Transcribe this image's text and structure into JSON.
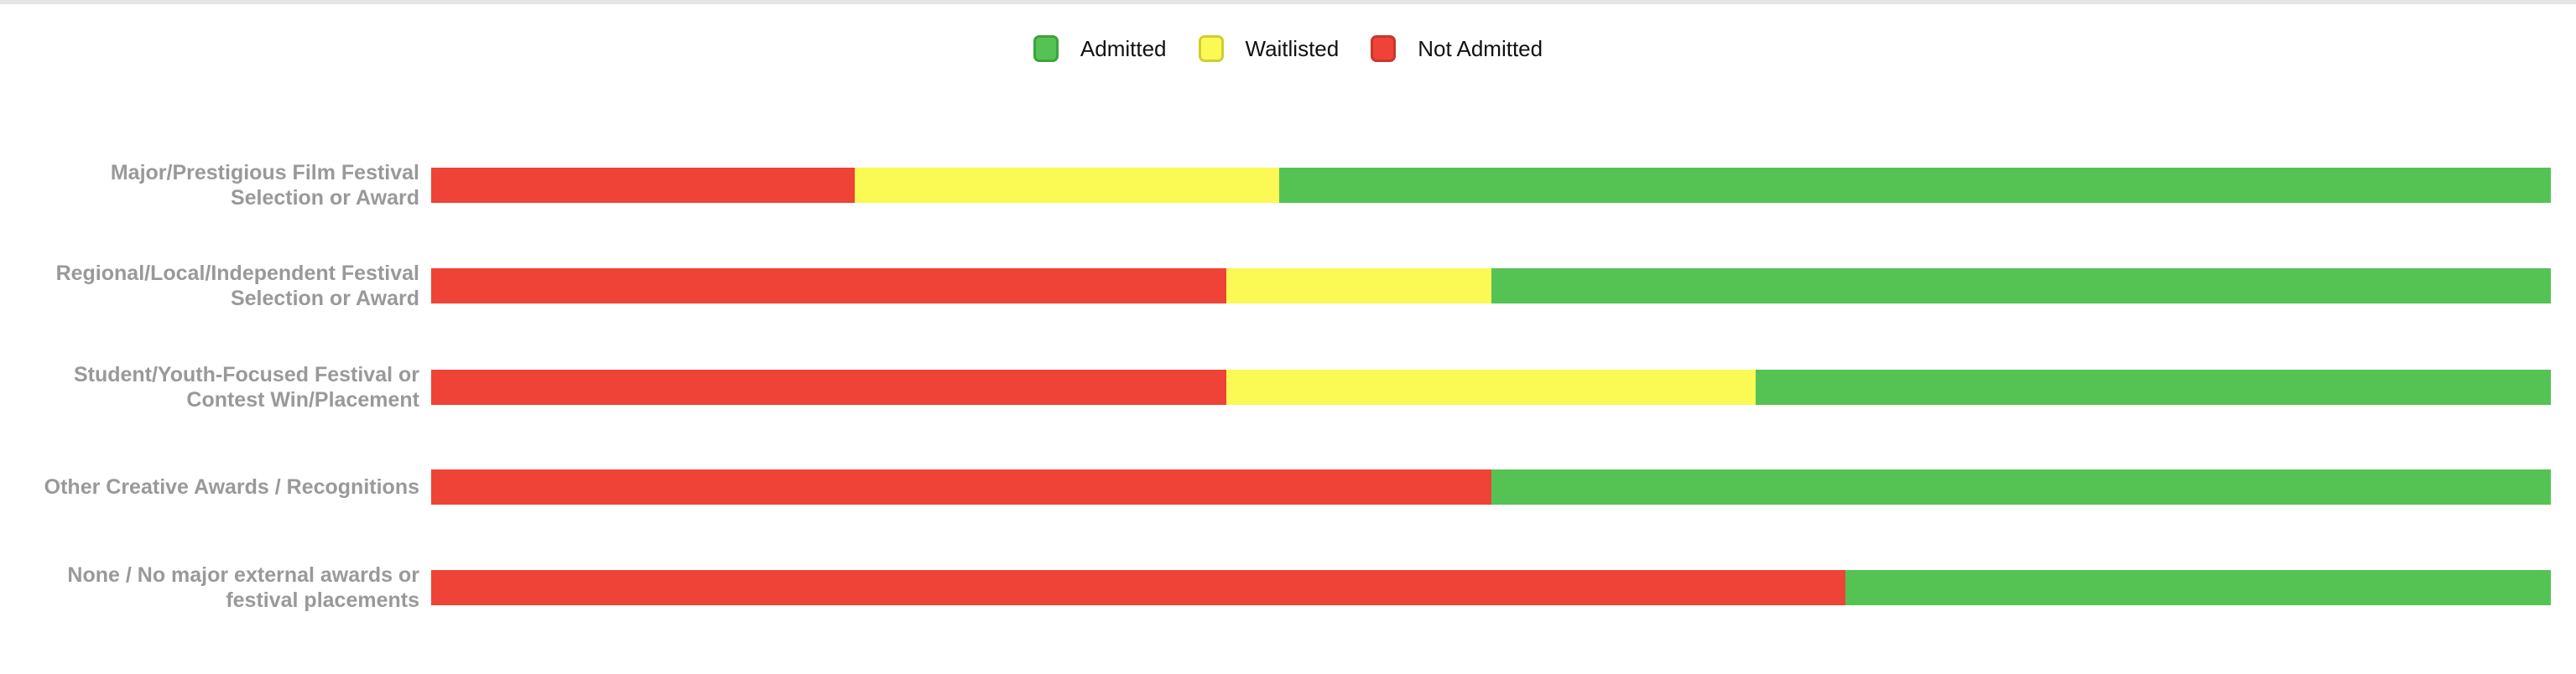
{
  "page": {
    "background": "#ffffff",
    "top_border_color": "#e4e4e4"
  },
  "colors": {
    "admitted": "#55c353",
    "admitted_border": "#3ea33d",
    "waitlisted": "#fbfa55",
    "waitlisted_border": "#cfce32",
    "not_admitted": "#ef4337",
    "not_admitted_border": "#c8372c",
    "category_label_text": "#999999",
    "legend_text": "#111111"
  },
  "legend": {
    "items": [
      {
        "label": "Admitted",
        "color_key": "admitted"
      },
      {
        "label": "Waitlisted",
        "color_key": "waitlisted"
      },
      {
        "label": "Not Admitted",
        "color_key": "not_admitted"
      }
    ],
    "position": "top-center"
  },
  "chart_data": {
    "type": "bar",
    "orientation": "horizontal",
    "stacked": true,
    "units": "percent",
    "xlim": [
      0,
      100
    ],
    "grid": false,
    "axis_tick_labels_visible": false,
    "legend_position": "top-center",
    "categories": [
      [
        "Major/Prestigious Film Festival",
        "Selection or Award"
      ],
      [
        "Regional/Local/Independent Festival",
        "Selection or Award"
      ],
      [
        "Student/Youth-Focused Festival or",
        "Contest Win/Placement"
      ],
      [
        "Other Creative Awards / Recognitions"
      ],
      [
        "None / No major external awards or",
        "festival placements"
      ]
    ],
    "series": [
      {
        "name": "Not Admitted",
        "color_key": "not_admitted",
        "values": [
          20,
          37.5,
          37.5,
          50,
          66.7
        ]
      },
      {
        "name": "Waitlisted",
        "color_key": "waitlisted",
        "values": [
          20,
          12.5,
          25,
          0,
          0
        ]
      },
      {
        "name": "Admitted",
        "color_key": "admitted",
        "values": [
          60,
          50,
          37.5,
          50,
          33.3
        ]
      }
    ]
  },
  "layout": {
    "row_tops": [
      200,
      320,
      441,
      560,
      680
    ]
  }
}
